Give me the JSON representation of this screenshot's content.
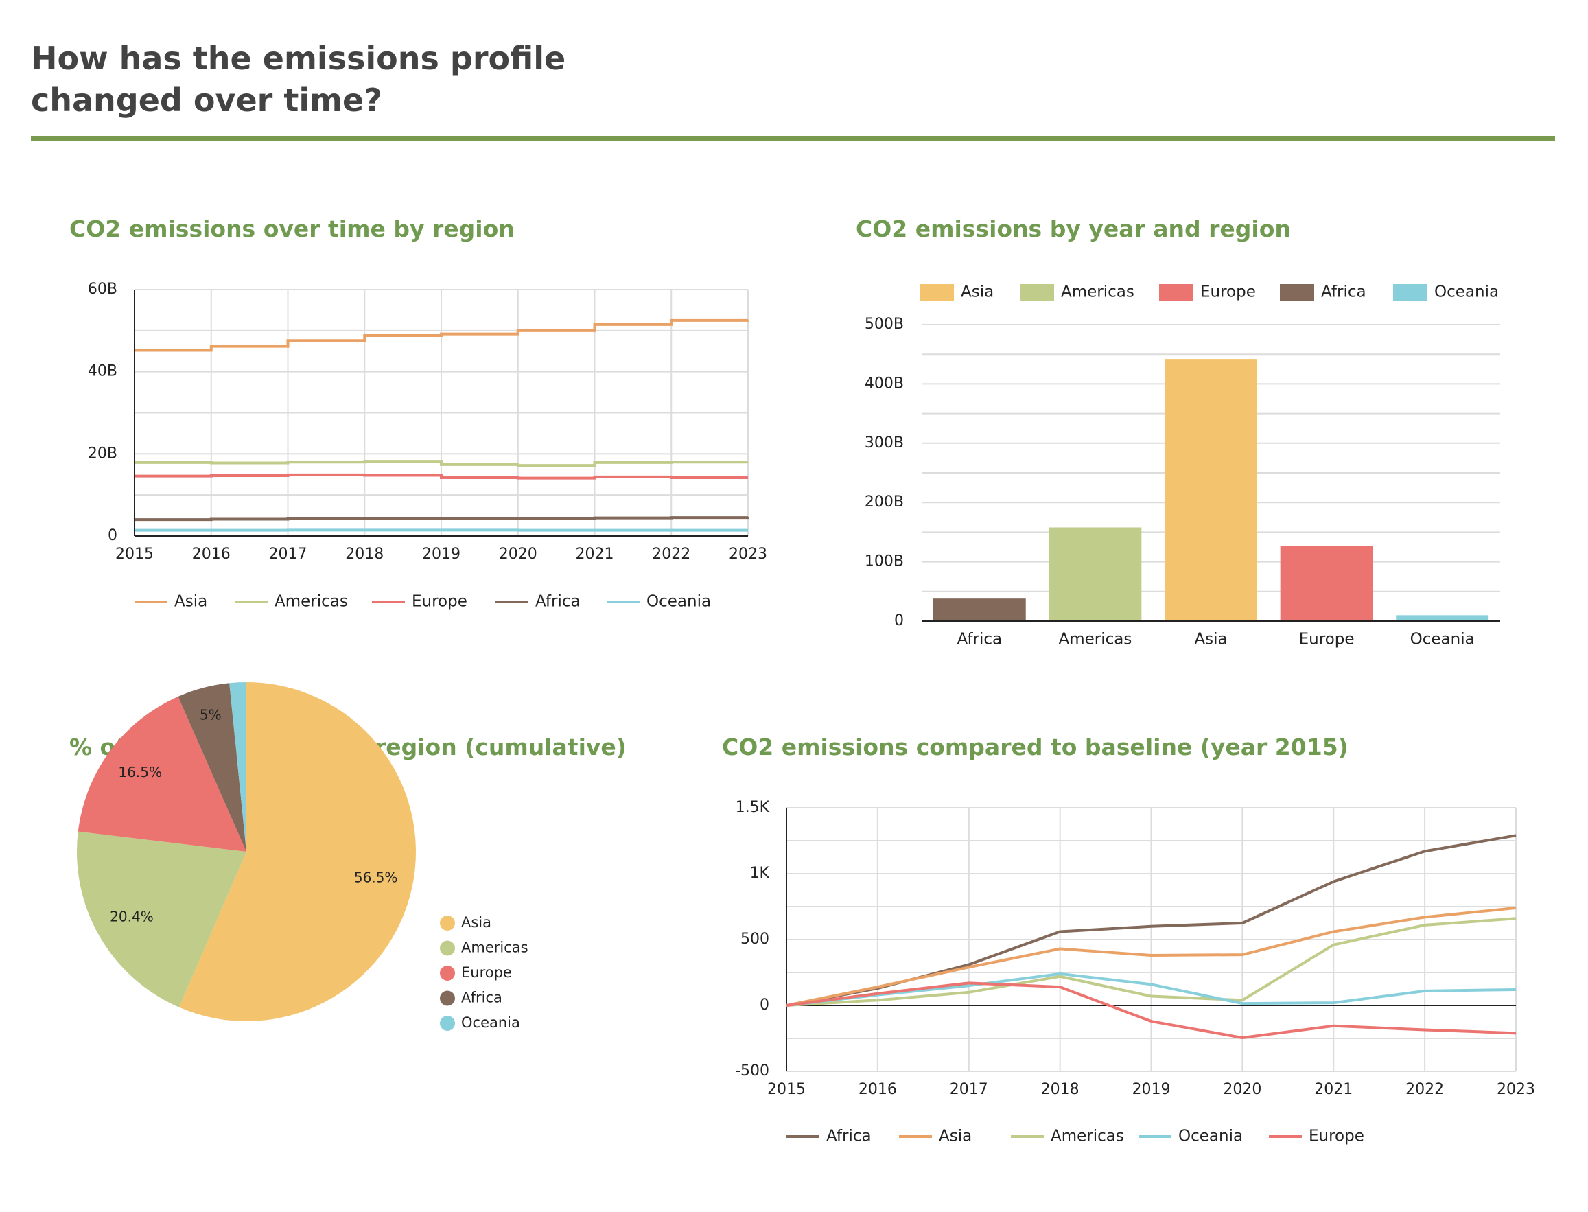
{
  "page": {
    "title_line1": "How has the emissions profile",
    "title_line2": "changed over time?"
  },
  "colors": {
    "accent": "#789b4f",
    "title_green": "#6f9a4f",
    "Asia_line": "#eaa165",
    "Asia_fill": "#f3c46d",
    "Americas": "#c0cc8a",
    "Europe": "#eb7470",
    "Africa": "#83695a",
    "Oceania": "#88cfdc"
  },
  "chart_data": [
    {
      "id": "over_time",
      "type": "line",
      "step": true,
      "title": "CO2 emissions over time by region",
      "x": [
        2015,
        2016,
        2017,
        2018,
        2019,
        2020,
        2021,
        2022,
        2023
      ],
      "ylim": [
        0,
        60000000000
      ],
      "yticks": [
        0,
        20000000000,
        40000000000,
        60000000000
      ],
      "ytick_labels": [
        "0",
        "20B",
        "40B",
        "60B"
      ],
      "xtick_labels": [
        "2015",
        "2016",
        "2017",
        "2018",
        "2019",
        "2020",
        "2021",
        "2022",
        "2023"
      ],
      "grid": true,
      "legend_position": "bottom",
      "series": [
        {
          "name": "Asia",
          "color": "#eaa165",
          "values": [
            45200000000,
            46200000000,
            47600000000,
            48800000000,
            49200000000,
            50000000000,
            51500000000,
            52500000000,
            52600000000
          ]
        },
        {
          "name": "Americas",
          "color": "#c0cc8a",
          "values": [
            17900000000,
            17800000000,
            18000000000,
            18200000000,
            17400000000,
            17200000000,
            17900000000,
            18000000000,
            18000000000
          ]
        },
        {
          "name": "Europe",
          "color": "#eb7470",
          "values": [
            14600000000,
            14700000000,
            14900000000,
            14800000000,
            14200000000,
            14100000000,
            14400000000,
            14200000000,
            14200000000
          ]
        },
        {
          "name": "Africa",
          "color": "#83695a",
          "values": [
            4000000000,
            4100000000,
            4200000000,
            4300000000,
            4300000000,
            4200000000,
            4400000000,
            4500000000,
            4600000000
          ]
        },
        {
          "name": "Oceania",
          "color": "#88cfdc",
          "values": [
            1400000000,
            1400000000,
            1450000000,
            1450000000,
            1450000000,
            1400000000,
            1400000000,
            1400000000,
            1400000000
          ]
        }
      ]
    },
    {
      "id": "by_region_bar",
      "type": "bar",
      "title": "CO2 emissions by year and region",
      "categories": [
        "Africa",
        "Americas",
        "Asia",
        "Europe",
        "Oceania"
      ],
      "values": [
        38000000000,
        158000000000,
        442000000000,
        127000000000,
        10000000000
      ],
      "bar_colors": [
        "#83695a",
        "#c0cc8a",
        "#f3c46d",
        "#eb7470",
        "#88cfdc"
      ],
      "ylim": [
        0,
        500000000000
      ],
      "yticks": [
        0,
        100000000000,
        200000000000,
        300000000000,
        400000000000,
        500000000000
      ],
      "ytick_labels": [
        "0",
        "100B",
        "200B",
        "300B",
        "400B",
        "500B"
      ],
      "grid": true,
      "legend_position": "top",
      "legend": [
        {
          "name": "Asia",
          "color": "#f3c46d"
        },
        {
          "name": "Americas",
          "color": "#c0cc8a"
        },
        {
          "name": "Europe",
          "color": "#eb7470"
        },
        {
          "name": "Africa",
          "color": "#83695a"
        },
        {
          "name": "Oceania",
          "color": "#88cfdc"
        }
      ]
    },
    {
      "id": "share_pie",
      "type": "pie",
      "title": "% of total emissions by region (cumulative)",
      "legend_position": "right",
      "slices": [
        {
          "name": "Asia",
          "value": 56.5,
          "label": "56.5%",
          "color": "#f3c46d"
        },
        {
          "name": "Americas",
          "value": 20.4,
          "label": "20.4%",
          "color": "#c0cc8a"
        },
        {
          "name": "Europe",
          "value": 16.5,
          "label": "16.5%",
          "color": "#eb7470"
        },
        {
          "name": "Africa",
          "value": 5.0,
          "label": "5%",
          "color": "#83695a"
        },
        {
          "name": "Oceania",
          "value": 1.6,
          "label": "",
          "color": "#88cfdc"
        }
      ]
    },
    {
      "id": "vs_baseline",
      "type": "line",
      "title": "CO2 emissions compared to baseline (year 2015)",
      "x": [
        2015,
        2016,
        2017,
        2018,
        2019,
        2020,
        2021,
        2022,
        2023
      ],
      "ylim": [
        -500,
        1500
      ],
      "yticks": [
        -500,
        0,
        500,
        1000,
        1500
      ],
      "ytick_labels": [
        "-500",
        "0",
        "500",
        "1K",
        "1.5K"
      ],
      "xtick_labels": [
        "2015",
        "2016",
        "2017",
        "2018",
        "2019",
        "2020",
        "2021",
        "2022",
        "2023"
      ],
      "grid": true,
      "legend_position": "bottom",
      "series": [
        {
          "name": "Africa",
          "color": "#83695a",
          "values": [
            0,
            130,
            310,
            560,
            600,
            625,
            940,
            1170,
            1290
          ]
        },
        {
          "name": "Asia",
          "color": "#eaa165",
          "values": [
            0,
            140,
            290,
            430,
            380,
            385,
            560,
            670,
            740
          ]
        },
        {
          "name": "Americas",
          "color": "#c0cc8a",
          "values": [
            0,
            40,
            100,
            220,
            70,
            40,
            460,
            610,
            660
          ]
        },
        {
          "name": "Oceania",
          "color": "#88cfdc",
          "values": [
            0,
            80,
            150,
            240,
            160,
            15,
            20,
            110,
            120
          ]
        },
        {
          "name": "Europe",
          "color": "#eb7470",
          "values": [
            0,
            90,
            170,
            140,
            -120,
            -245,
            -155,
            -185,
            -210
          ]
        }
      ]
    }
  ]
}
